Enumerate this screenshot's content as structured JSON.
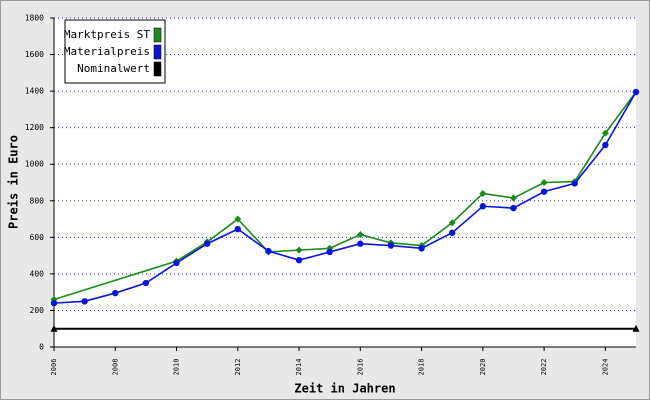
{
  "chart_data": {
    "type": "line",
    "x_label": "Zeit in Jahren",
    "y_label": "Preis in Euro",
    "xlim": [
      2006,
      2025
    ],
    "xticks": [
      2006,
      2008,
      2010,
      2012,
      2014,
      2016,
      2018,
      2020,
      2022,
      2024
    ],
    "ylim": [
      0,
      1800
    ],
    "yticks": [
      0,
      200,
      400,
      600,
      800,
      1000,
      1200,
      1400,
      1600,
      1800
    ],
    "grid": true,
    "legend": "top-left",
    "series": [
      {
        "name": "Marktpreis ST",
        "color": "#1a8c1a",
        "marker": "diamond",
        "x": [
          2006,
          2010,
          2011,
          2012,
          2013,
          2014,
          2015,
          2016,
          2017,
          2018,
          2019,
          2020,
          2021,
          2022,
          2023,
          2024,
          2025
        ],
        "values": [
          260,
          470,
          575,
          700,
          520,
          530,
          540,
          615,
          570,
          555,
          680,
          840,
          815,
          900,
          905,
          1170,
          1395
        ]
      },
      {
        "name": "Materialpreis",
        "color": "#0a14dc",
        "marker": "circle",
        "x": [
          2006,
          2007,
          2008,
          2009,
          2010,
          2011,
          2012,
          2013,
          2014,
          2015,
          2016,
          2017,
          2018,
          2019,
          2020,
          2021,
          2022,
          2023,
          2024,
          2025
        ],
        "values": [
          240,
          250,
          295,
          350,
          460,
          565,
          645,
          525,
          475,
          520,
          565,
          555,
          540,
          625,
          770,
          760,
          850,
          895,
          1105,
          1395
        ]
      },
      {
        "name": "Nominalwert",
        "color": "#000000",
        "marker": "triangle",
        "x": [
          2006,
          2025
        ],
        "values": [
          100,
          100
        ]
      }
    ]
  }
}
